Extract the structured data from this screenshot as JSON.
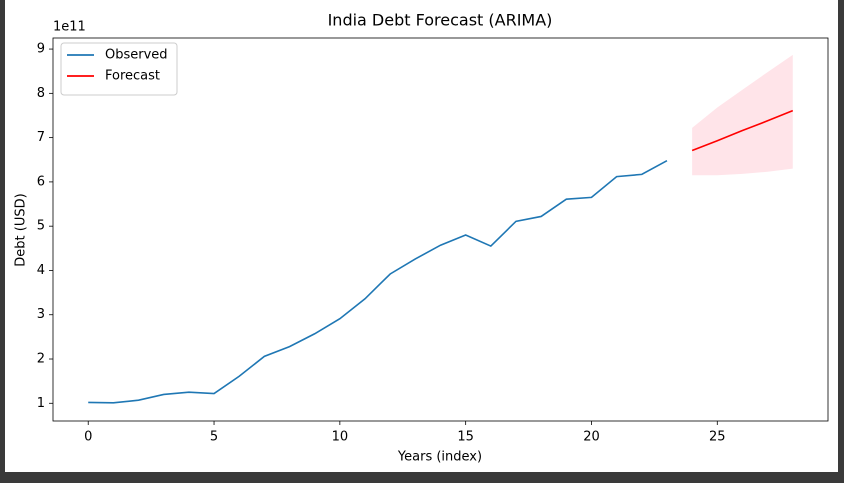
{
  "chart_data": {
    "type": "line",
    "title": "India Debt Forecast (ARIMA)",
    "xlabel": "Years (index)",
    "ylabel": "Debt (USD)",
    "y_offset_label": "1e11",
    "xlim": [
      -1.4,
      29.4
    ],
    "xticks": [
      0,
      5,
      10,
      15,
      20,
      25
    ],
    "ylim": [
      0.6,
      9.25
    ],
    "yticks": [
      1,
      2,
      3,
      4,
      5,
      6,
      7,
      8,
      9
    ],
    "legend": "upper left",
    "series": [
      {
        "name": "Observed",
        "color": "#1f77b4",
        "x": [
          0,
          1,
          2,
          3,
          4,
          5,
          6,
          7,
          8,
          9,
          10,
          11,
          12,
          13,
          14,
          15,
          16,
          17,
          18,
          19,
          20,
          21,
          22,
          23
        ],
        "values": [
          1.02,
          1.01,
          1.07,
          1.2,
          1.25,
          1.22,
          1.61,
          2.06,
          2.28,
          2.57,
          2.91,
          3.36,
          3.92,
          4.26,
          4.57,
          4.8,
          4.55,
          5.11,
          5.22,
          5.61,
          5.65,
          6.12,
          6.17,
          6.48
        ]
      },
      {
        "name": "Forecast",
        "color": "#ff0000",
        "x": [
          24,
          25,
          26,
          27,
          28
        ],
        "values": [
          6.71,
          6.93,
          7.16,
          7.38,
          7.61
        ]
      }
    ],
    "confidence_band": {
      "color": "#ffe4e9",
      "x": [
        24,
        25,
        26,
        27,
        28
      ],
      "lower": [
        6.15,
        6.15,
        6.18,
        6.23,
        6.3
      ],
      "upper": [
        7.22,
        7.68,
        8.08,
        8.48,
        8.87
      ]
    }
  }
}
